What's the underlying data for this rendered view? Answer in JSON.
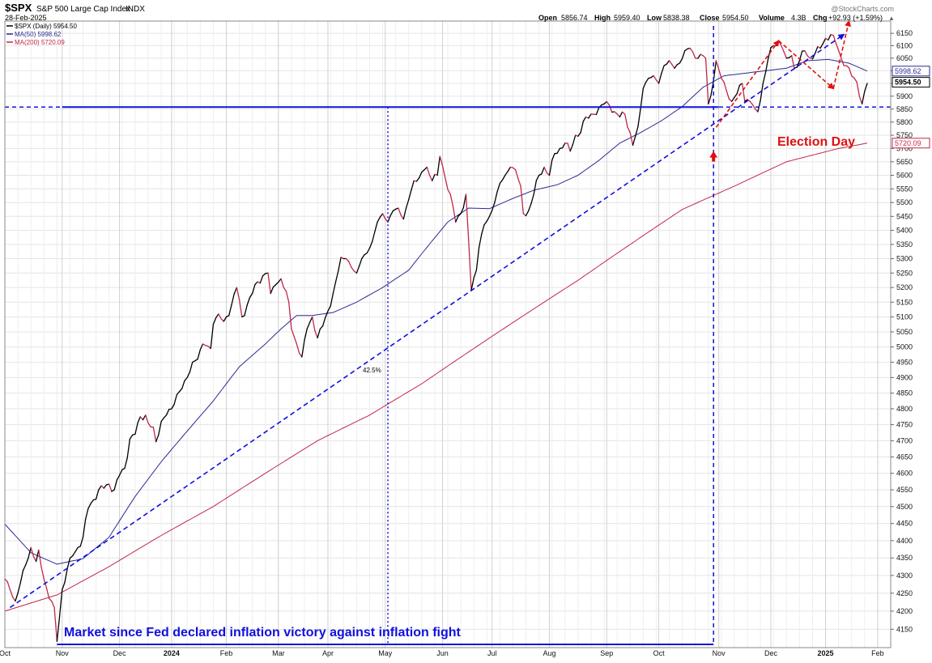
{
  "header": {
    "symbol": "$SPX",
    "name": "S&P 500 Large Cap Index",
    "exchange": "INDX",
    "date": "28-Feb-2025",
    "watermark": "@StockCharts.com",
    "open_label": "Open",
    "open": "5856.74",
    "high_label": "High",
    "high": "5959.40",
    "low_label": "Low",
    "low": "5838.38",
    "close_label": "Close",
    "close": "5954.50",
    "volume_label": "Volume",
    "volume": "4.3B",
    "chg_label": "Chg",
    "chg": "+92.93 (+1.59%)",
    "chg_arrow": "▲"
  },
  "legend": [
    {
      "text": "$SPX (Daily) 5954.50",
      "color": "#000000"
    },
    {
      "text": "MA(50) 5998.62",
      "color": "#2a2a90"
    },
    {
      "text": "MA(200) 5720.09",
      "color": "#c0284a"
    }
  ],
  "colors": {
    "up": "#000000",
    "down": "#c0284a",
    "ma50": "#2a2a90",
    "ma200": "#c0284a",
    "trend": "#1010dd",
    "annotation_red": "#e01010",
    "grid": "#e4e4e4"
  },
  "annotations": {
    "election_day": "Election Day",
    "caption": "Market since Fed declared inflation victory against inflation fight",
    "pct_label": "42.5%"
  },
  "chart_data": {
    "type": "line",
    "title": "$SPX S&P 500 Large Cap Index INDX",
    "x_unit": "trading days",
    "ylim": [
      4100,
      6200
    ],
    "y_scale": "log",
    "y_ticks": [
      4150,
      4200,
      4250,
      4300,
      4350,
      4400,
      4450,
      4500,
      4550,
      4600,
      4650,
      4700,
      4750,
      4800,
      4850,
      4900,
      4950,
      5000,
      5050,
      5100,
      5150,
      5200,
      5250,
      5300,
      5350,
      5400,
      5450,
      5500,
      5550,
      5600,
      5650,
      5700,
      5750,
      5800,
      5850,
      5900,
      5950,
      6000,
      6050,
      6100,
      6150
    ],
    "x_tick_labels": [
      {
        "label": "Oct",
        "day": 0
      },
      {
        "label": "Nov",
        "day": 22
      },
      {
        "label": "Dec",
        "day": 44
      },
      {
        "label": "2024",
        "day": 64
      },
      {
        "label": "Feb",
        "day": 85
      },
      {
        "label": "Mar",
        "day": 105
      },
      {
        "label": "Apr",
        "day": 124
      },
      {
        "label": "May",
        "day": 146
      },
      {
        "label": "Jun",
        "day": 168
      },
      {
        "label": "Jul",
        "day": 187
      },
      {
        "label": "Aug",
        "day": 209
      },
      {
        "label": "Sep",
        "day": 231
      },
      {
        "label": "Oct",
        "day": 251
      },
      {
        "label": "Nov",
        "day": 274
      },
      {
        "label": "Dec",
        "day": 294
      },
      {
        "label": "2025",
        "day": 315
      },
      {
        "label": "Feb",
        "day": 335
      }
    ],
    "price_anchors": [
      [
        0,
        4290
      ],
      [
        2,
        4260
      ],
      [
        4,
        4228
      ],
      [
        6,
        4280
      ],
      [
        8,
        4330
      ],
      [
        10,
        4380
      ],
      [
        12,
        4340
      ],
      [
        13,
        4373
      ],
      [
        15,
        4290
      ],
      [
        17,
        4235
      ],
      [
        19,
        4210
      ],
      [
        20,
        4117
      ],
      [
        22,
        4260
      ],
      [
        24,
        4320
      ],
      [
        26,
        4356
      ],
      [
        28,
        4380
      ],
      [
        30,
        4410
      ],
      [
        32,
        4495
      ],
      [
        34,
        4520
      ],
      [
        36,
        4550
      ],
      [
        38,
        4555
      ],
      [
        40,
        4567
      ],
      [
        42,
        4550
      ],
      [
        44,
        4594
      ],
      [
        46,
        4615
      ],
      [
        48,
        4705
      ],
      [
        50,
        4720
      ],
      [
        52,
        4775
      ],
      [
        54,
        4780
      ],
      [
        55,
        4755
      ],
      [
        57,
        4742
      ],
      [
        58,
        4697
      ],
      [
        60,
        4760
      ],
      [
        62,
        4780
      ],
      [
        64,
        4800
      ],
      [
        66,
        4845
      ],
      [
        68,
        4865
      ],
      [
        70,
        4900
      ],
      [
        72,
        4950
      ],
      [
        74,
        4960
      ],
      [
        76,
        5010
      ],
      [
        77,
        5005
      ],
      [
        79,
        4995
      ],
      [
        80,
        5075
      ],
      [
        82,
        5110
      ],
      [
        84,
        5085
      ],
      [
        85,
        5100
      ],
      [
        87,
        5140
      ],
      [
        89,
        5200
      ],
      [
        91,
        5100
      ],
      [
        93,
        5140
      ],
      [
        95,
        5180
      ],
      [
        97,
        5220
      ],
      [
        99,
        5240
      ],
      [
        101,
        5250
      ],
      [
        102,
        5180
      ],
      [
        104,
        5210
      ],
      [
        106,
        5230
      ],
      [
        107,
        5200
      ],
      [
        109,
        5150
      ],
      [
        110,
        5060
      ],
      [
        112,
        5010
      ],
      [
        114,
        4967
      ],
      [
        116,
        5060
      ],
      [
        118,
        5100
      ],
      [
        120,
        5030
      ],
      [
        122,
        5070
      ],
      [
        124,
        5120
      ],
      [
        126,
        5180
      ],
      [
        127,
        5220
      ],
      [
        129,
        5305
      ],
      [
        131,
        5300
      ],
      [
        133,
        5270
      ],
      [
        135,
        5250
      ],
      [
        137,
        5300
      ],
      [
        139,
        5320
      ],
      [
        141,
        5360
      ],
      [
        143,
        5430
      ],
      [
        145,
        5460
      ],
      [
        147,
        5430
      ],
      [
        149,
        5470
      ],
      [
        151,
        5480
      ],
      [
        153,
        5440
      ],
      [
        155,
        5510
      ],
      [
        157,
        5580
      ],
      [
        159,
        5590
      ],
      [
        161,
        5620
      ],
      [
        162,
        5630
      ],
      [
        164,
        5580
      ],
      [
        166,
        5600
      ],
      [
        167,
        5670
      ],
      [
        169,
        5590
      ],
      [
        171,
        5530
      ],
      [
        173,
        5430
      ],
      [
        175,
        5460
      ],
      [
        177,
        5530
      ],
      [
        179,
        5190
      ],
      [
        181,
        5260
      ],
      [
        182,
        5340
      ],
      [
        184,
        5420
      ],
      [
        186,
        5450
      ],
      [
        188,
        5500
      ],
      [
        190,
        5570
      ],
      [
        192,
        5600
      ],
      [
        194,
        5630
      ],
      [
        196,
        5620
      ],
      [
        198,
        5560
      ],
      [
        199,
        5460
      ],
      [
        201,
        5470
      ],
      [
        203,
        5530
      ],
      [
        205,
        5600
      ],
      [
        207,
        5630
      ],
      [
        209,
        5600
      ],
      [
        211,
        5680
      ],
      [
        213,
        5700
      ],
      [
        215,
        5720
      ],
      [
        217,
        5690
      ],
      [
        219,
        5750
      ],
      [
        221,
        5760
      ],
      [
        223,
        5820
      ],
      [
        224,
        5815
      ],
      [
        226,
        5830
      ],
      [
        228,
        5855
      ],
      [
        230,
        5870
      ],
      [
        232,
        5865
      ],
      [
        234,
        5840
      ],
      [
        236,
        5820
      ],
      [
        238,
        5830
      ],
      [
        240,
        5760
      ],
      [
        241,
        5712
      ],
      [
        243,
        5782
      ],
      [
        245,
        5930
      ],
      [
        247,
        5970
      ],
      [
        249,
        5980
      ],
      [
        251,
        5950
      ],
      [
        253,
        6020
      ],
      [
        255,
        6040
      ],
      [
        257,
        6010
      ],
      [
        259,
        6030
      ],
      [
        261,
        6080
      ],
      [
        263,
        6090
      ],
      [
        265,
        6050
      ],
      [
        267,
        6065
      ],
      [
        269,
        6050
      ],
      [
        270,
        5870
      ],
      [
        272,
        5960
      ],
      [
        273,
        6040
      ],
      [
        275,
        5970
      ],
      [
        277,
        5920
      ],
      [
        279,
        5880
      ],
      [
        281,
        5910
      ],
      [
        283,
        5950
      ],
      [
        284,
        5880
      ],
      [
        286,
        5880
      ],
      [
        288,
        5850
      ],
      [
        289,
        5840
      ],
      [
        291,
        5950
      ],
      [
        293,
        6050
      ],
      [
        295,
        6100
      ],
      [
        297,
        6120
      ],
      [
        298,
        6100
      ],
      [
        300,
        6050
      ],
      [
        302,
        6060
      ],
      [
        303,
        6010
      ],
      [
        305,
        6040
      ],
      [
        307,
        6080
      ],
      [
        309,
        6050
      ],
      [
        311,
        6070
      ],
      [
        313,
        6090
      ],
      [
        315,
        6130
      ],
      [
        317,
        6145
      ],
      [
        319,
        6110
      ],
      [
        321,
        6050
      ],
      [
        323,
        6020
      ],
      [
        325,
        5980
      ],
      [
        327,
        5955
      ],
      [
        329,
        5870
      ],
      [
        331,
        5950
      ]
    ],
    "ma50_anchors": [
      [
        0,
        4448
      ],
      [
        10,
        4365
      ],
      [
        20,
        4332
      ],
      [
        30,
        4348
      ],
      [
        40,
        4410
      ],
      [
        50,
        4530
      ],
      [
        60,
        4635
      ],
      [
        70,
        4730
      ],
      [
        80,
        4825
      ],
      [
        90,
        4935
      ],
      [
        100,
        5010
      ],
      [
        106,
        5060
      ],
      [
        112,
        5105
      ],
      [
        118,
        5105
      ],
      [
        126,
        5115
      ],
      [
        135,
        5150
      ],
      [
        145,
        5200
      ],
      [
        155,
        5260
      ],
      [
        162,
        5340
      ],
      [
        170,
        5430
      ],
      [
        178,
        5480
      ],
      [
        186,
        5478
      ],
      [
        195,
        5515
      ],
      [
        203,
        5545
      ],
      [
        212,
        5565
      ],
      [
        220,
        5600
      ],
      [
        228,
        5655
      ],
      [
        236,
        5720
      ],
      [
        244,
        5760
      ],
      [
        252,
        5805
      ],
      [
        260,
        5860
      ],
      [
        268,
        5935
      ],
      [
        276,
        5980
      ],
      [
        284,
        5990
      ],
      [
        292,
        6000
      ],
      [
        300,
        6010
      ],
      [
        308,
        6040
      ],
      [
        316,
        6045
      ],
      [
        324,
        6030
      ],
      [
        331,
        5998.62
      ]
    ],
    "ma200_anchors": [
      [
        0,
        4200
      ],
      [
        20,
        4245
      ],
      [
        40,
        4325
      ],
      [
        60,
        4415
      ],
      [
        80,
        4500
      ],
      [
        100,
        4600
      ],
      [
        120,
        4700
      ],
      [
        140,
        4780
      ],
      [
        160,
        4880
      ],
      [
        180,
        4995
      ],
      [
        200,
        5110
      ],
      [
        220,
        5225
      ],
      [
        240,
        5350
      ],
      [
        260,
        5475
      ],
      [
        280,
        5560
      ],
      [
        300,
        5650
      ],
      [
        320,
        5700
      ],
      [
        331,
        5720.09
      ]
    ],
    "tags": [
      {
        "value": 5998.62,
        "text": "5998.62",
        "color": "#2a2a90"
      },
      {
        "value": 5954.5,
        "text": "5954.50",
        "color": "#000000"
      },
      {
        "value": 5720.09,
        "text": "5720.09",
        "color": "#c0284a"
      }
    ]
  }
}
